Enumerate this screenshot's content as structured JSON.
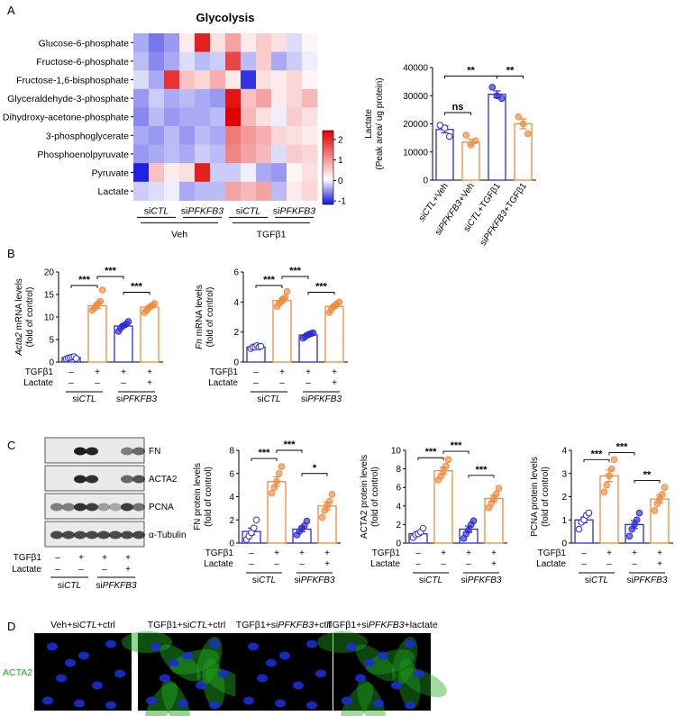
{
  "panels": {
    "a": "A",
    "b": "B",
    "c": "C",
    "d": "D"
  },
  "colors": {
    "ctl": "#2b2bd6",
    "pfkfb3": "#f08a3c",
    "heat_low": "#1010e0",
    "heat_mid": "#ffffff",
    "heat_high": "#e00000",
    "green": "#1fa51f"
  },
  "heatmap": {
    "title": "Glycolysis",
    "rows": [
      "Glucose-6-phosphate",
      "Fructose-6-phosphate",
      "Fructose-1,6-bisphosphate",
      "Glyceraldehyde-3-phosphate",
      "Dihydroxy-acetone-phosphate",
      "3-phosphoglycerate",
      "Phosphoenolpyruvate",
      "Pyruvate",
      "Lactate"
    ],
    "group_labels": [
      {
        "pre": "si",
        "it": "CTL"
      },
      {
        "pre": "si",
        "it": "PFKFB3"
      },
      {
        "pre": "si",
        "it": "CTL"
      },
      {
        "pre": "si",
        "it": "PFKFB3"
      }
    ],
    "treatments": [
      "Veh",
      "TGFβ1"
    ],
    "colorbar_ticks": [
      "2",
      "1",
      "0",
      "-1"
    ],
    "values": [
      [
        -0.5,
        -0.8,
        -0.6,
        0.2,
        2.2,
        0.3,
        0.9,
        0.2,
        0.5,
        0.3,
        -0.2,
        0.1
      ],
      [
        -0.4,
        -0.7,
        -0.5,
        -0.2,
        -0.4,
        -0.3,
        1.8,
        -0.4,
        0.5,
        -0.5,
        -0.3,
        -0.1
      ],
      [
        -0.2,
        -0.5,
        2.0,
        0.6,
        0.4,
        0.8,
        0.2,
        -1.2,
        0.3,
        0.2,
        0.4,
        0.1
      ],
      [
        -0.6,
        -0.3,
        -0.5,
        -0.4,
        -0.5,
        -0.6,
        2.3,
        0.6,
        0.9,
        0.2,
        0.4,
        0.7
      ],
      [
        -0.7,
        -0.4,
        -0.6,
        -0.5,
        -0.5,
        -0.4,
        2.5,
        0.7,
        0.3,
        -0.1,
        0.5,
        0.3
      ],
      [
        -0.5,
        -0.6,
        -0.4,
        -0.6,
        -0.4,
        -0.5,
        1.3,
        1.0,
        0.8,
        0.4,
        0.3,
        0.2
      ],
      [
        -0.6,
        -0.5,
        -0.4,
        -0.5,
        -0.3,
        -0.4,
        1.2,
        0.9,
        0.7,
        -0.2,
        0.5,
        0.4
      ],
      [
        -1.3,
        0.6,
        0.2,
        0.3,
        2.2,
        -0.3,
        -0.3,
        -0.1,
        -0.5,
        -0.6,
        0.1,
        0.3
      ],
      [
        -0.3,
        -0.2,
        -0.1,
        -0.5,
        -0.4,
        -0.4,
        0.9,
        0.7,
        0.9,
        -0.4,
        0.2,
        0.4
      ]
    ]
  },
  "chart_data": [
    {
      "type": "bar",
      "id": "lactate",
      "ylabel": [
        "Lactate",
        "(Peak area/ ug protein)"
      ],
      "ylim": [
        0,
        40000
      ],
      "yticks": [
        "0",
        "10000",
        "20000",
        "30000",
        "40000"
      ],
      "categories": [
        "siCTL+Veh",
        "siPFKFB3+Veh",
        "siCTL+TGFβ1",
        "siPFKFB3+TGFβ1"
      ],
      "xlabels": [
        {
          "pre": "si",
          "it": "CTL",
          "post": "+Veh"
        },
        {
          "pre": "si",
          "it": "PFKFB3",
          "post": "+Veh"
        },
        {
          "pre": "si",
          "it": "CTL",
          "post": "+TGFβ1"
        },
        {
          "pre": "si",
          "it": "PFKFB3",
          "post": "+TGFβ1"
        }
      ],
      "values": [
        18000,
        13500,
        30500,
        20000
      ],
      "points": [
        [
          19500,
          18500,
          15500
        ],
        [
          16000,
          12500,
          14000
        ],
        [
          33000,
          30000,
          29000
        ],
        [
          22500,
          20000,
          16500
        ]
      ],
      "sig": [
        {
          "a": 0,
          "b": 1,
          "label": "ns",
          "y": 24000
        },
        {
          "a": 0,
          "b": 2,
          "label": "**",
          "y": 37000
        },
        {
          "a": 2,
          "b": 3,
          "label": "**",
          "y": 37000
        }
      ]
    },
    {
      "type": "bar",
      "id": "acta2_mrna",
      "ylabel": [
        {
          "it": "Acta2",
          "rest": " mRNA levels"
        },
        "(fold of control)"
      ],
      "ylim": [
        0,
        20
      ],
      "yticks": [
        "0",
        "5",
        "10",
        "15",
        "20"
      ],
      "values": [
        1.0,
        12.5,
        8.0,
        12.2
      ],
      "points": [
        [
          0.7,
          0.9,
          1.0,
          1.1,
          1.2,
          0.8
        ],
        [
          11.5,
          12.0,
          12.5,
          13.0,
          13.5,
          16.0
        ],
        [
          6.8,
          7.5,
          8.0,
          8.2,
          8.5,
          9.0
        ],
        [
          11.0,
          11.5,
          12.0,
          12.4,
          12.6,
          13.0
        ]
      ],
      "sig": [
        {
          "a": 0,
          "b": 1,
          "label": "***",
          "y": 17
        },
        {
          "a": 1,
          "b": 2,
          "label": "***",
          "y": 19
        },
        {
          "a": 2,
          "b": 3,
          "label": "***",
          "y": 15.5
        }
      ],
      "row_labels": [
        "TGFβ1",
        "Lactate"
      ],
      "row_values": [
        [
          "–",
          "+",
          "+",
          "+"
        ],
        [
          "–",
          "–",
          "–",
          "+"
        ]
      ],
      "groups": [
        {
          "pre": "si",
          "it": "CTL"
        },
        {
          "pre": "si",
          "it": "PFKFB3"
        }
      ]
    },
    {
      "type": "bar",
      "id": "fn_mrna",
      "ylabel": [
        {
          "it": "Fn",
          "rest": " mRNA levels"
        },
        "(fold of control)"
      ],
      "ylim": [
        0,
        6
      ],
      "yticks": [
        "0",
        "2",
        "4",
        "6"
      ],
      "values": [
        1.0,
        4.1,
        1.8,
        3.7
      ],
      "points": [
        [
          0.9,
          1.0,
          1.0,
          1.1,
          1.0,
          1.05
        ],
        [
          3.7,
          3.9,
          4.0,
          4.2,
          4.3,
          4.7
        ],
        [
          1.6,
          1.7,
          1.8,
          1.85,
          1.9,
          1.95
        ],
        [
          3.3,
          3.5,
          3.7,
          3.8,
          3.9,
          4.0
        ]
      ],
      "sig": [
        {
          "a": 0,
          "b": 1,
          "label": "***",
          "y": 5.1
        },
        {
          "a": 1,
          "b": 2,
          "label": "***",
          "y": 5.7
        },
        {
          "a": 2,
          "b": 3,
          "label": "***",
          "y": 4.65
        }
      ],
      "row_labels": [
        "TGFβ1",
        "Lactate"
      ],
      "row_values": [
        [
          "–",
          "+",
          "+",
          "+"
        ],
        [
          "–",
          "–",
          "–",
          "+"
        ]
      ],
      "groups": [
        {
          "pre": "si",
          "it": "CTL"
        },
        {
          "pre": "si",
          "it": "PFKFB3"
        }
      ]
    },
    {
      "type": "bar",
      "id": "fn_protein",
      "ylabel": [
        "FN protein levels",
        "(fold of control)"
      ],
      "ylim": [
        0,
        8
      ],
      "yticks": [
        "0",
        "2",
        "4",
        "6",
        "8"
      ],
      "values": [
        1.0,
        5.3,
        1.2,
        3.2
      ],
      "points": [
        [
          0.3,
          0.6,
          0.9,
          1.3,
          2.0
        ],
        [
          4.3,
          4.8,
          5.3,
          6.0,
          6.6
        ],
        [
          0.7,
          1.0,
          1.3,
          1.5,
          1.9
        ],
        [
          2.2,
          2.8,
          3.2,
          3.6,
          4.2
        ]
      ],
      "sig": [
        {
          "a": 0,
          "b": 1,
          "label": "***",
          "y": 7.3
        },
        {
          "a": 1,
          "b": 2,
          "label": "***",
          "y": 8.0
        },
        {
          "a": 2,
          "b": 3,
          "label": "*",
          "y": 6.0
        }
      ],
      "row_labels": [
        "TGFβ1",
        "Lactate"
      ],
      "row_values": [
        [
          "–",
          "+",
          "+",
          "+"
        ],
        [
          "–",
          "–",
          "–",
          "+"
        ]
      ],
      "groups": [
        {
          "pre": "si",
          "it": "CTL"
        },
        {
          "pre": "si",
          "it": "PFKFB3"
        }
      ]
    },
    {
      "type": "bar",
      "id": "acta2_protein",
      "ylabel": [
        "ACTA2 protein levels",
        "(fold of control)"
      ],
      "ylim": [
        0,
        10
      ],
      "yticks": [
        "0",
        "2",
        "4",
        "6",
        "8",
        "10"
      ],
      "values": [
        1.0,
        7.8,
        1.5,
        4.8
      ],
      "points": [
        [
          0.6,
          0.9,
          1.0,
          1.2,
          1.6
        ],
        [
          6.8,
          7.2,
          7.8,
          8.3,
          9.0
        ],
        [
          0.5,
          1.0,
          1.4,
          2.0,
          2.4
        ],
        [
          3.8,
          4.3,
          4.8,
          5.3,
          5.9
        ]
      ],
      "sig": [
        {
          "a": 0,
          "b": 1,
          "label": "***",
          "y": 9.2
        },
        {
          "a": 1,
          "b": 2,
          "label": "***",
          "y": 9.9
        },
        {
          "a": 2,
          "b": 3,
          "label": "***",
          "y": 7.3
        }
      ],
      "row_labels": [
        "TGFβ1",
        "Lactate"
      ],
      "row_values": [
        [
          "–",
          "+",
          "+",
          "+"
        ],
        [
          "–",
          "–",
          "–",
          "+"
        ]
      ],
      "groups": [
        {
          "pre": "si",
          "it": "CTL"
        },
        {
          "pre": "si",
          "it": "PFKFB3"
        }
      ]
    },
    {
      "type": "bar",
      "id": "pcna_protein",
      "ylabel": [
        "PCNA protein levels",
        "(fold of control)"
      ],
      "ylim": [
        0,
        4
      ],
      "yticks": [
        "0",
        "1",
        "2",
        "3",
        "4"
      ],
      "values": [
        1.0,
        2.9,
        0.8,
        1.9
      ],
      "points": [
        [
          0.6,
          0.9,
          1.0,
          1.2,
          1.3
        ],
        [
          2.2,
          2.5,
          2.9,
          3.2,
          3.6
        ],
        [
          0.3,
          0.6,
          0.8,
          1.0,
          1.3
        ],
        [
          1.4,
          1.7,
          1.9,
          2.1,
          2.4
        ]
      ],
      "sig": [
        {
          "a": 0,
          "b": 1,
          "label": "***",
          "y": 3.6
        },
        {
          "a": 1,
          "b": 2,
          "label": "***",
          "y": 3.9
        },
        {
          "a": 2,
          "b": 3,
          "label": "**",
          "y": 2.7
        }
      ],
      "row_labels": [
        "TGFβ1",
        "Lactate"
      ],
      "row_values": [
        [
          "–",
          "+",
          "+",
          "+"
        ],
        [
          "–",
          "–",
          "–",
          "+"
        ]
      ],
      "groups": [
        {
          "pre": "si",
          "it": "CTL"
        },
        {
          "pre": "si",
          "it": "PFKFB3"
        }
      ]
    }
  ],
  "western": {
    "bands": [
      "FN",
      "ACTA2",
      "PCNA",
      "α-Tubulin"
    ],
    "row_labels": [
      "TGFβ1",
      "Lactate"
    ],
    "row_values": [
      [
        "–",
        "+",
        "+",
        "+"
      ],
      [
        "–",
        "–",
        "–",
        "+"
      ]
    ],
    "groups": [
      {
        "pre": "si",
        "it": "CTL"
      },
      {
        "pre": "si",
        "it": "PFKFB3"
      }
    ],
    "intensities": [
      [
        0,
        0,
        0.95,
        0.9,
        0,
        0,
        0.5,
        0.6
      ],
      [
        0,
        0,
        0.9,
        0.85,
        0,
        0,
        0.6,
        0.7
      ],
      [
        0.5,
        0.5,
        0.85,
        0.8,
        0.35,
        0.3,
        0.8,
        0.55
      ],
      [
        0.75,
        0.75,
        0.75,
        0.75,
        0.75,
        0.75,
        0.75,
        0.75
      ]
    ]
  },
  "microscopy": {
    "titles": [
      [
        {
          "t": "Veh+si"
        },
        {
          "t": "CTL",
          "it": true
        },
        {
          "t": "+ctrl"
        }
      ],
      [
        {
          "t": "TGFβ1+si"
        },
        {
          "t": "CTL",
          "it": true
        },
        {
          "t": "+ctrl"
        }
      ],
      [
        {
          "t": "TGFβ1+si"
        },
        {
          "t": "PFKFB3",
          "it": true
        },
        {
          "t": "+ctrl"
        }
      ],
      [
        {
          "t": "TGFβ1+si"
        },
        {
          "t": "PFKFB3",
          "it": true
        },
        {
          "t": "+lactate"
        }
      ]
    ],
    "green_level": [
      0.05,
      0.8,
      0.05,
      0.7
    ],
    "stain_label": "ACTA2"
  }
}
